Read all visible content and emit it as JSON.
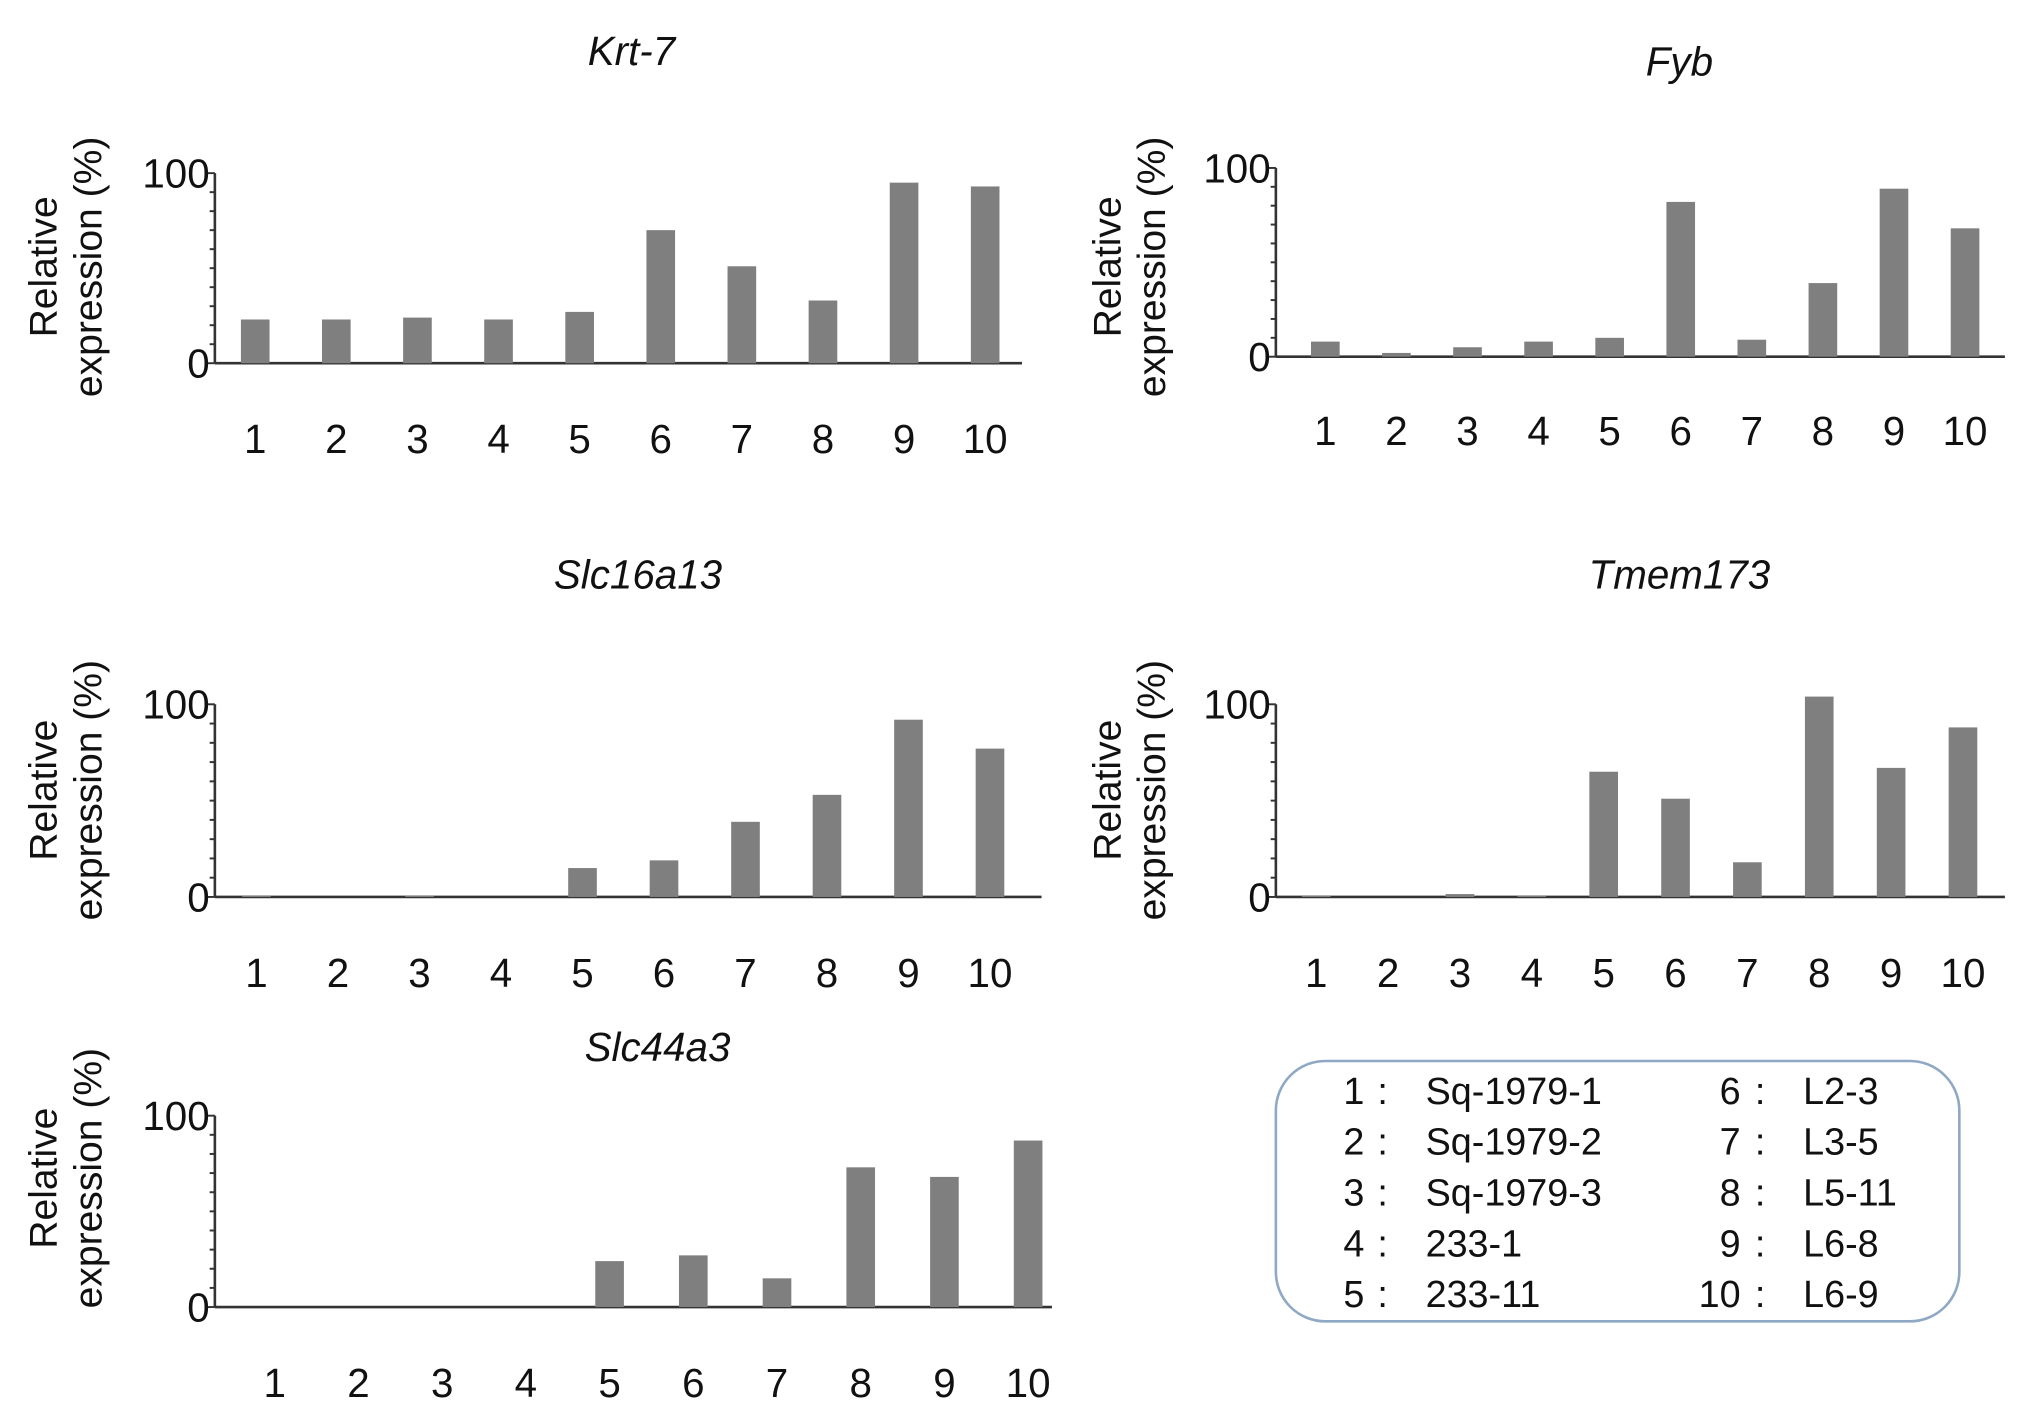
{
  "colors": {
    "bar": "#7f7f7f",
    "axis": "#333333",
    "legend_border": "#8fa8c4"
  },
  "chart_data": [
    {
      "type": "bar",
      "title": "Krt-7",
      "ylabel": "Relative expression (%)",
      "xlabel": "",
      "categories": [
        "1",
        "2",
        "3",
        "4",
        "5",
        "6",
        "7",
        "8",
        "9",
        "10"
      ],
      "values": [
        23,
        23,
        24,
        23,
        27,
        70,
        51,
        33,
        95,
        93
      ],
      "yticks": [
        "0",
        "100"
      ],
      "ylim": [
        0,
        100
      ]
    },
    {
      "type": "bar",
      "title": "Fyb",
      "ylabel": "Relative expression (%)",
      "xlabel": "",
      "categories": [
        "1",
        "2",
        "3",
        "4",
        "5",
        "6",
        "7",
        "8",
        "9",
        "10"
      ],
      "values": [
        8,
        2,
        5,
        8,
        10,
        82,
        9,
        39,
        89,
        68
      ],
      "yticks": [
        "0",
        "100"
      ],
      "ylim": [
        0,
        100
      ]
    },
    {
      "type": "bar",
      "title": "Slc16a13",
      "ylabel": "Relative expression (%)",
      "xlabel": "",
      "categories": [
        "1",
        "2",
        "3",
        "4",
        "5",
        "6",
        "7",
        "8",
        "9",
        "10"
      ],
      "values": [
        0.5,
        0,
        0.5,
        0,
        15,
        19,
        39,
        53,
        92,
        77
      ],
      "yticks": [
        "0",
        "100"
      ],
      "ylim": [
        0,
        100
      ]
    },
    {
      "type": "bar",
      "title": "Tmem173",
      "ylabel": "Relative expression (%)",
      "xlabel": "",
      "categories": [
        "1",
        "2",
        "3",
        "4",
        "5",
        "6",
        "7",
        "8",
        "9",
        "10"
      ],
      "values": [
        0.5,
        0,
        1.5,
        0.5,
        65,
        51,
        18,
        104,
        67,
        88
      ],
      "yticks": [
        "0",
        "100"
      ],
      "ylim": [
        0,
        100
      ]
    },
    {
      "type": "bar",
      "title": "Slc44a3",
      "ylabel": "Relative expression (%)",
      "xlabel": "",
      "categories": [
        "1",
        "2",
        "3",
        "4",
        "5",
        "6",
        "7",
        "8",
        "9",
        "10"
      ],
      "values": [
        0,
        0,
        0,
        0,
        24,
        27,
        15,
        73,
        68,
        87
      ],
      "yticks": [
        "0",
        "100"
      ],
      "ylim": [
        0,
        100
      ]
    }
  ],
  "legend": {
    "entries": [
      {
        "num": "1",
        "sep": ":",
        "label": "Sq-1979-1"
      },
      {
        "num": "2",
        "sep": ":",
        "label": "Sq-1979-2"
      },
      {
        "num": "3",
        "sep": ":",
        "label": "Sq-1979-3"
      },
      {
        "num": "4",
        "sep": ":",
        "label": "233-1"
      },
      {
        "num": "5",
        "sep": ":",
        "label": "233-11"
      },
      {
        "num": "6",
        "sep": ":",
        "label": "L2-3"
      },
      {
        "num": "7",
        "sep": ":",
        "label": "L3-5"
      },
      {
        "num": "8",
        "sep": ":",
        "label": "L5-11"
      },
      {
        "num": "9",
        "sep": ":",
        "label": "L6-8"
      },
      {
        "num": "10",
        "sep": ":",
        "label": "L6-9"
      }
    ]
  }
}
